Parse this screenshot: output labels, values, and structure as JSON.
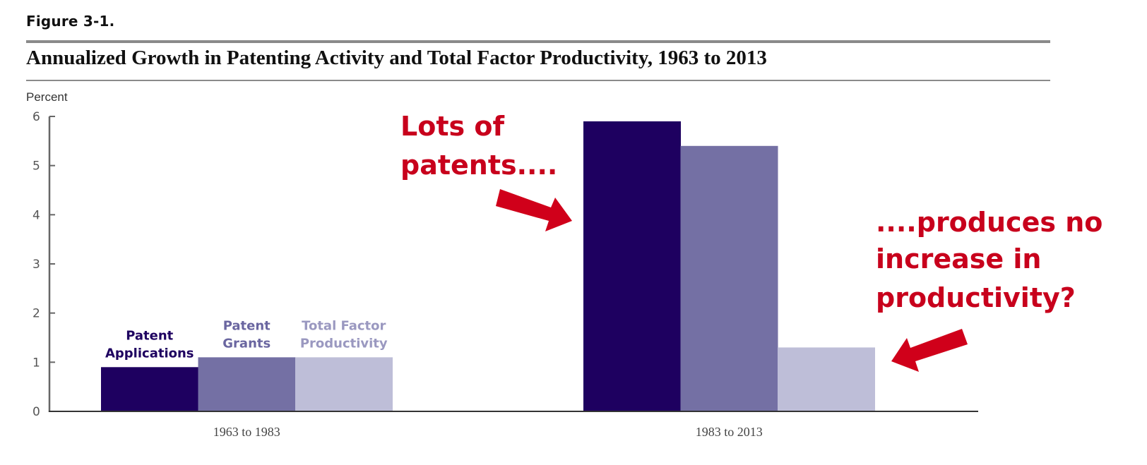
{
  "figure_label": "Figure 3-1.",
  "chart_data": {
    "type": "bar",
    "title": "Annualized Growth in Patenting Activity and Total Factor Productivity, 1963 to 2013",
    "ylabel": "Percent",
    "xlabel": "",
    "ylim": [
      0,
      6
    ],
    "yticks": [
      "0",
      "1",
      "2",
      "3",
      "4",
      "5",
      "6"
    ],
    "grid": false,
    "categories": [
      "1963 to 1983",
      "1983 to 2013"
    ],
    "series": [
      {
        "name": "Patent Applications",
        "name_lines": [
          "Patent",
          "Applications"
        ],
        "color": "#1e0060",
        "values": [
          0.9,
          5.9
        ]
      },
      {
        "name": "Patent Grants",
        "name_lines": [
          "Patent",
          "Grants"
        ],
        "color": "#7470a4",
        "values": [
          1.1,
          5.4
        ]
      },
      {
        "name": "Total Factor Productivity",
        "name_lines": [
          "Total Factor",
          "Productivity"
        ],
        "color": "#bebed8",
        "values": [
          1.1,
          1.3
        ]
      }
    ],
    "legend_placement": "inline-above-first-group",
    "annotations": [
      {
        "lines": [
          "Lots of",
          "patents...."
        ],
        "color": "#c8001c"
      },
      {
        "lines": [
          "....produces no",
          "increase in",
          "productivity?"
        ],
        "color": "#c8001c"
      }
    ]
  }
}
